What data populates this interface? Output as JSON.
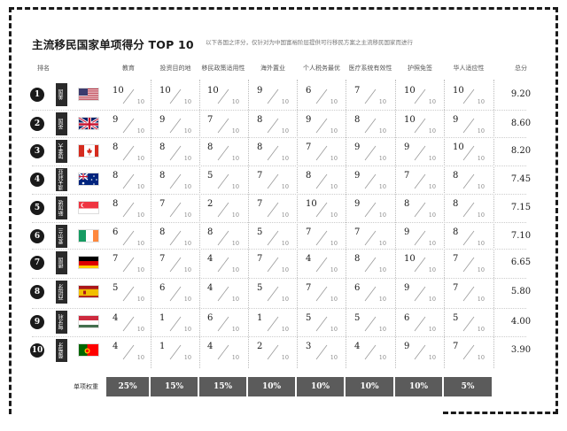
{
  "title": "主流移民国家单项得分 TOP 10",
  "subtitle": "以下各国之评分，仅针对为中国富裕阶层提供可行移民方案之主流移民国家而进行",
  "rank_header": "排名",
  "chart_data": {
    "type": "table",
    "title": "主流移民国家单项得分 TOP 10",
    "columns": [
      "教育",
      "投资目的地",
      "移民政策适用性",
      "海外置业",
      "个人税务最优",
      "医疗系统有效性",
      "护照免签",
      "华人适应性",
      "总分"
    ],
    "denominator": "10",
    "rows": [
      {
        "rank": "1",
        "country": "美国",
        "flag": "us",
        "scores": [
          "10",
          "10",
          "10",
          "9",
          "6",
          "7",
          "10",
          "10"
        ],
        "total": "9.20"
      },
      {
        "rank": "2",
        "country": "英国",
        "flag": "gb",
        "scores": [
          "9",
          "9",
          "7",
          "8",
          "9",
          "8",
          "10",
          "9"
        ],
        "total": "8.60"
      },
      {
        "rank": "3",
        "country": "加拿大",
        "flag": "ca",
        "scores": [
          "8",
          "8",
          "8",
          "8",
          "7",
          "9",
          "9",
          "10"
        ],
        "total": "8.20"
      },
      {
        "rank": "4",
        "country": "澳大利亚",
        "flag": "au",
        "scores": [
          "8",
          "8",
          "5",
          "7",
          "8",
          "9",
          "7",
          "8"
        ],
        "total": "7.45"
      },
      {
        "rank": "5",
        "country": "新加坡",
        "flag": "sg",
        "scores": [
          "8",
          "7",
          "2",
          "7",
          "10",
          "9",
          "8",
          "8"
        ],
        "total": "7.15"
      },
      {
        "rank": "6",
        "country": "爱尔兰",
        "flag": "ie",
        "scores": [
          "6",
          "8",
          "8",
          "5",
          "7",
          "7",
          "9",
          "8"
        ],
        "total": "7.10"
      },
      {
        "rank": "7",
        "country": "德国",
        "flag": "de",
        "scores": [
          "7",
          "7",
          "4",
          "7",
          "4",
          "8",
          "10",
          "7"
        ],
        "total": "6.65"
      },
      {
        "rank": "8",
        "country": "西班牙",
        "flag": "es",
        "scores": [
          "5",
          "6",
          "4",
          "5",
          "7",
          "6",
          "9",
          "7"
        ],
        "total": "5.80"
      },
      {
        "rank": "9",
        "country": "匈牙利",
        "flag": "hu",
        "scores": [
          "4",
          "1",
          "6",
          "1",
          "5",
          "5",
          "6",
          "5"
        ],
        "total": "4.00"
      },
      {
        "rank": "10",
        "country": "葡萄牙",
        "flag": "pt",
        "scores": [
          "4",
          "1",
          "4",
          "2",
          "3",
          "4",
          "9",
          "7"
        ],
        "total": "3.90"
      }
    ],
    "weight_label": "单项权重",
    "weights": [
      "25%",
      "15%",
      "15%",
      "10%",
      "10%",
      "10%",
      "10%",
      "5%"
    ]
  }
}
